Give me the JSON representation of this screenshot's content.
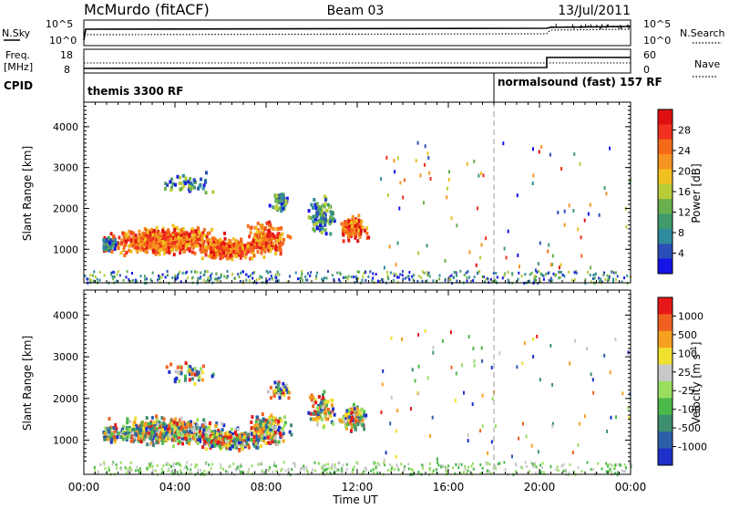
{
  "header": {
    "station": "McMurdo (fitACF)",
    "beam": "Beam 03",
    "date": "13/Jul/2011"
  },
  "top_panel": {
    "left_label": "N.Sky",
    "left_ticks": [
      "10^5",
      "10^0"
    ],
    "right_ticks": [
      "10^5",
      "10^0"
    ],
    "right_label": "N.Search",
    "freq_label_1": "Freq.",
    "freq_label_2": "[MHz]",
    "freq_ticks": [
      "18",
      "8"
    ],
    "nave_ticks": [
      "60",
      "0"
    ],
    "nave_label": "Nave",
    "cpid_label": "CPID",
    "cpid_1": "themis 3300 RF",
    "cpid_2": "normalsound (fast) 157 RF"
  },
  "colorbars": {
    "power": {
      "label": "Power [dB]",
      "ticks": [
        "28",
        "24",
        "20",
        "16",
        "12",
        "8",
        "4"
      ],
      "colors": [
        "#1414e6",
        "#2b4fb8",
        "#2f8a9c",
        "#3f9a6c",
        "#6ab04e",
        "#b8cc3a",
        "#f0c020",
        "#f59420",
        "#f56a18",
        "#f03020",
        "#e01010"
      ]
    },
    "velocity": {
      "label": "Velocity [m s^-1]",
      "ticks": [
        "1000",
        "500",
        "100",
        "25",
        "-25",
        "-100",
        "-500",
        "-1000"
      ],
      "colors": [
        "#1e30c8",
        "#2a5fa8",
        "#3e8e70",
        "#4bb84a",
        "#9ade60",
        "#c8c8c8",
        "#f0e030",
        "#f5a020",
        "#f06020",
        "#e81818"
      ]
    }
  },
  "chart_data": [
    {
      "type": "heatmap",
      "name": "power",
      "ylabel": "Slant Range [km]",
      "yticks": [
        "1000",
        "2000",
        "3000",
        "4000"
      ],
      "ylim": [
        180,
        4600
      ],
      "xlim": [
        0,
        24
      ],
      "xticks": [
        "00:00",
        "04:00",
        "08:00",
        "12:00",
        "16:00",
        "20:00",
        "00:00"
      ],
      "xlabel": "Time UT",
      "segment_change_hour": 18
    },
    {
      "type": "heatmap",
      "name": "velocity",
      "ylabel": "Slant Range [km]",
      "yticks": [
        "1000",
        "2000",
        "3000",
        "4000"
      ],
      "ylim": [
        180,
        4600
      ],
      "xlim": [
        0,
        24
      ]
    }
  ]
}
